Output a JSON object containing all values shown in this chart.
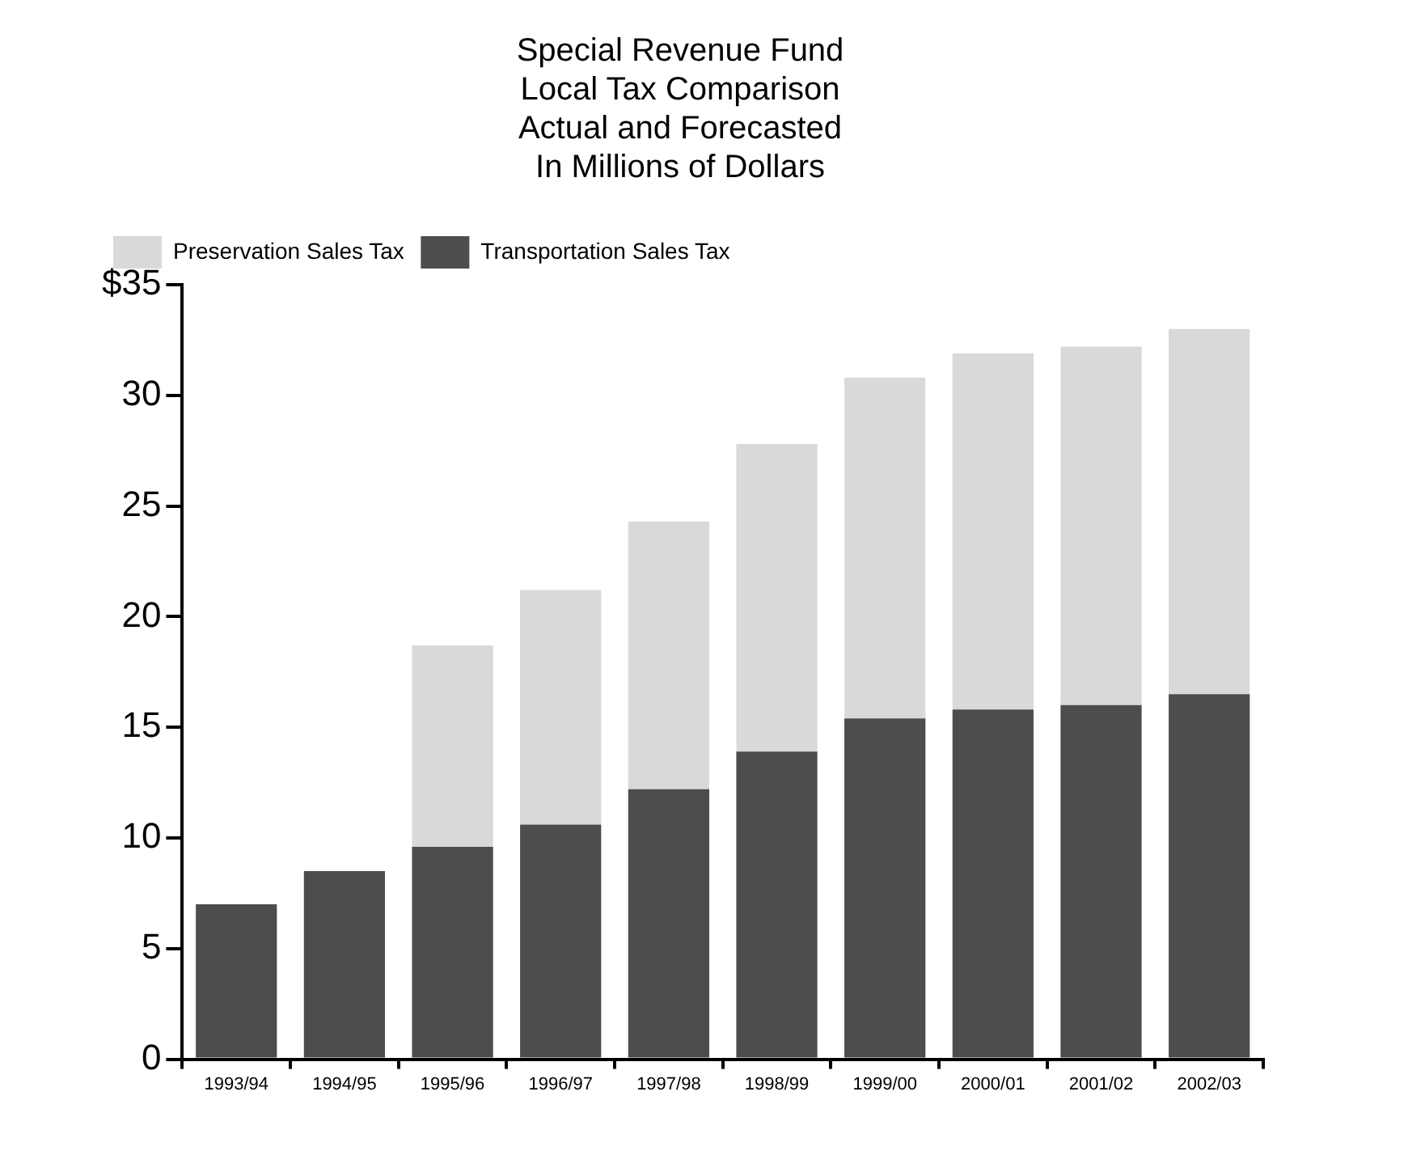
{
  "chart_data": {
    "type": "bar",
    "title": "Special Revenue Fund\nLocal Tax Comparison\nActual and Forecasted\nIn Millions of Dollars",
    "categories": [
      "1993/94",
      "1994/95",
      "1995/96",
      "1996/97",
      "1997/98",
      "1998/99",
      "1999/00",
      "2000/01",
      "2001/02",
      "2002/03"
    ],
    "stacked": true,
    "series": [
      {
        "name": "Transportation Sales Tax",
        "color": "#4d4d4d",
        "values": [
          7.0,
          8.5,
          9.6,
          10.6,
          12.2,
          13.9,
          15.4,
          15.8,
          16.0,
          16.5
        ]
      },
      {
        "name": "Preservation Sales Tax",
        "color": "#d9d9d9",
        "values": [
          0,
          0,
          9.1,
          10.6,
          12.1,
          13.9,
          15.4,
          16.1,
          16.2,
          16.5
        ]
      }
    ],
    "ylim": [
      0,
      35
    ],
    "yticks": [
      0,
      5,
      10,
      15,
      20,
      25,
      30,
      {
        "value": 35,
        "label": "$35"
      }
    ],
    "grid": false,
    "legend": "top left"
  }
}
